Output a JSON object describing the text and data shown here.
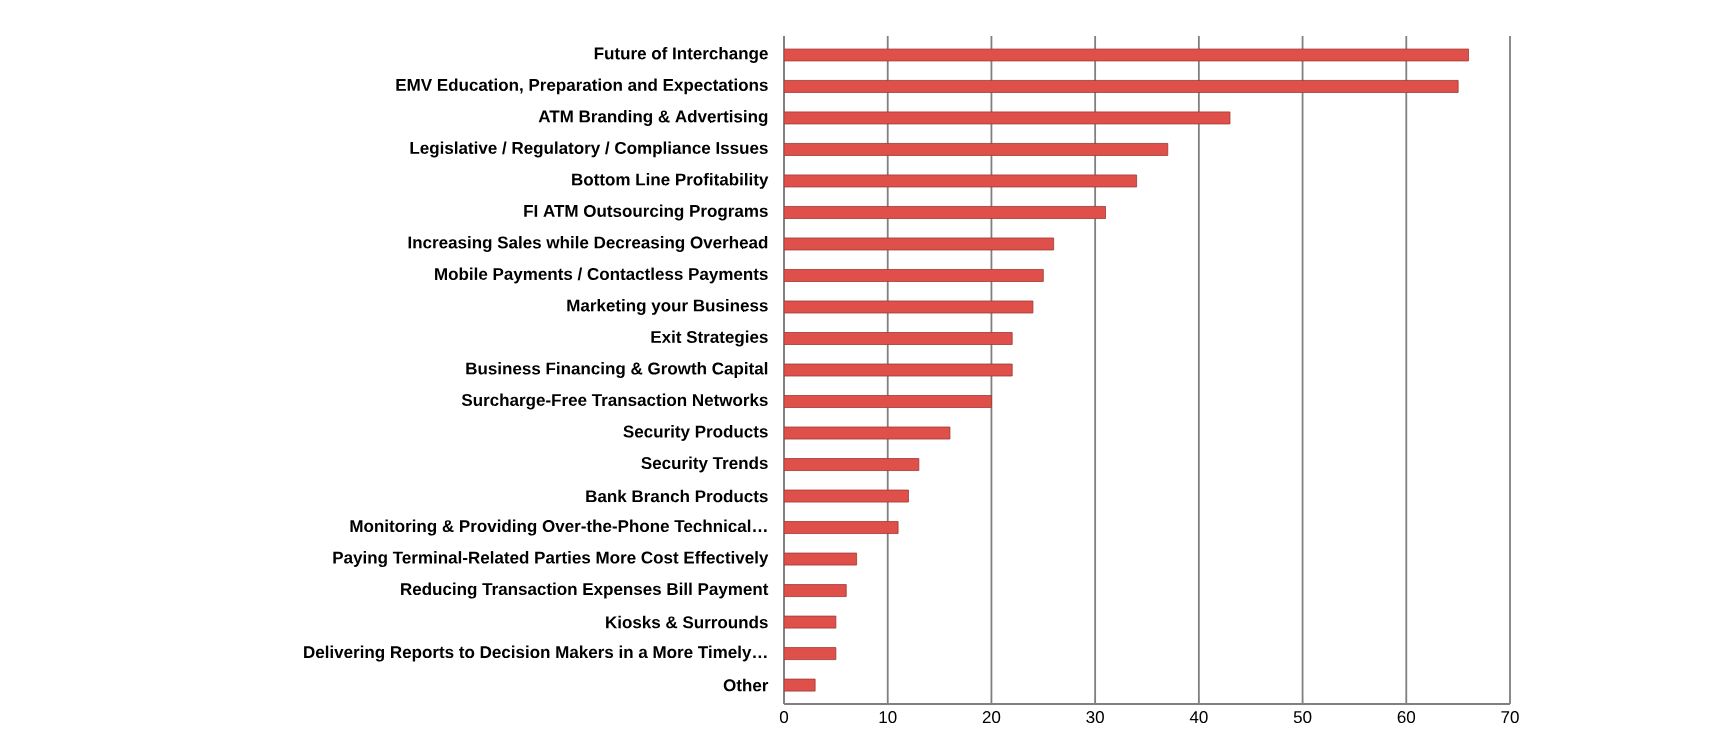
{
  "chart_data": {
    "type": "bar",
    "orientation": "horizontal",
    "color": "#e0504a",
    "categories": [
      "Future of Interchange",
      "EMV Education, Preparation and Expectations",
      "ATM Branding & Advertising",
      "Legislative / Regulatory / Compliance Issues",
      "Bottom Line Profitability",
      "FI ATM Outsourcing Programs",
      "Increasing Sales while Decreasing Overhead",
      "Mobile Payments / Contactless Payments",
      "Marketing your Business",
      "Exit Strategies",
      "Business Financing & Growth Capital",
      "Surcharge-Free Transaction Networks",
      "Security Products",
      "Security Trends",
      "Bank Branch Products",
      "Monitoring & Providing Over-the-Phone Technical…",
      "Paying Terminal-Related Parties More Cost Effectively",
      "Reducing Transaction Expenses Bill Payment",
      "Kiosks & Surrounds",
      "Delivering Reports to Decision Makers in a More Timely…",
      "Other"
    ],
    "values": [
      66,
      65,
      43,
      37,
      34,
      31,
      26,
      25,
      24,
      22,
      22,
      20,
      16,
      13,
      12,
      11,
      7,
      6,
      5,
      5,
      3
    ],
    "xlim": [
      0,
      70
    ],
    "xticks": [
      0,
      10,
      20,
      30,
      40,
      50,
      60,
      70
    ],
    "grid": "x"
  }
}
